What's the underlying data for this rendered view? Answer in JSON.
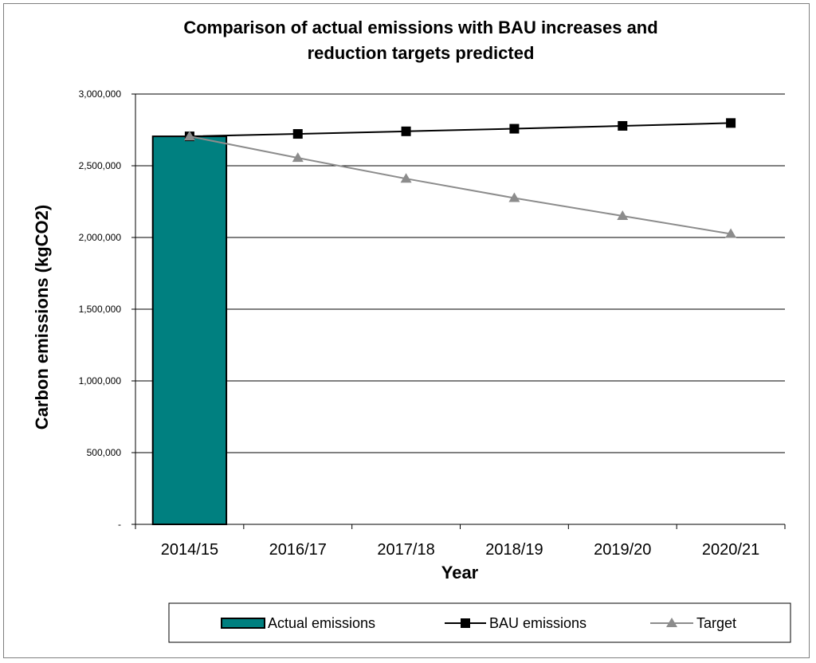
{
  "chart_data": {
    "type": "bar",
    "title_lines": [
      "Comparison of actual emissions with  BAU increases and",
      "reduction targets predicted"
    ],
    "xlabel": "Year",
    "ylabel": "Carbon emissions (kgCO2)",
    "categories": [
      "2014/15",
      "2016/17",
      "2017/18",
      "2018/19",
      "2019/20",
      "2020/21"
    ],
    "ylim": [
      0,
      3000000
    ],
    "yticks": [
      0,
      500000,
      1000000,
      1500000,
      2000000,
      2500000,
      3000000
    ],
    "ytick_labels": [
      "-",
      "500,000",
      "1,000,000",
      "1,500,000",
      "2,000,000",
      "2,500,000",
      "3,000,000"
    ],
    "grid": true,
    "legend_position": "bottom",
    "series": [
      {
        "name": "Actual emissions",
        "kind": "bar",
        "color": "#008080",
        "values": [
          2705000,
          null,
          null,
          null,
          null,
          null
        ]
      },
      {
        "name": "BAU emissions",
        "kind": "line",
        "marker": "square",
        "color": "#000000",
        "values": [
          2705000,
          2722000,
          2740000,
          2758000,
          2778000,
          2798000
        ]
      },
      {
        "name": "Target",
        "kind": "line",
        "marker": "triangle",
        "color": "#8c8c8c",
        "values": [
          2705000,
          2555000,
          2410000,
          2275000,
          2150000,
          2025000
        ]
      }
    ]
  }
}
